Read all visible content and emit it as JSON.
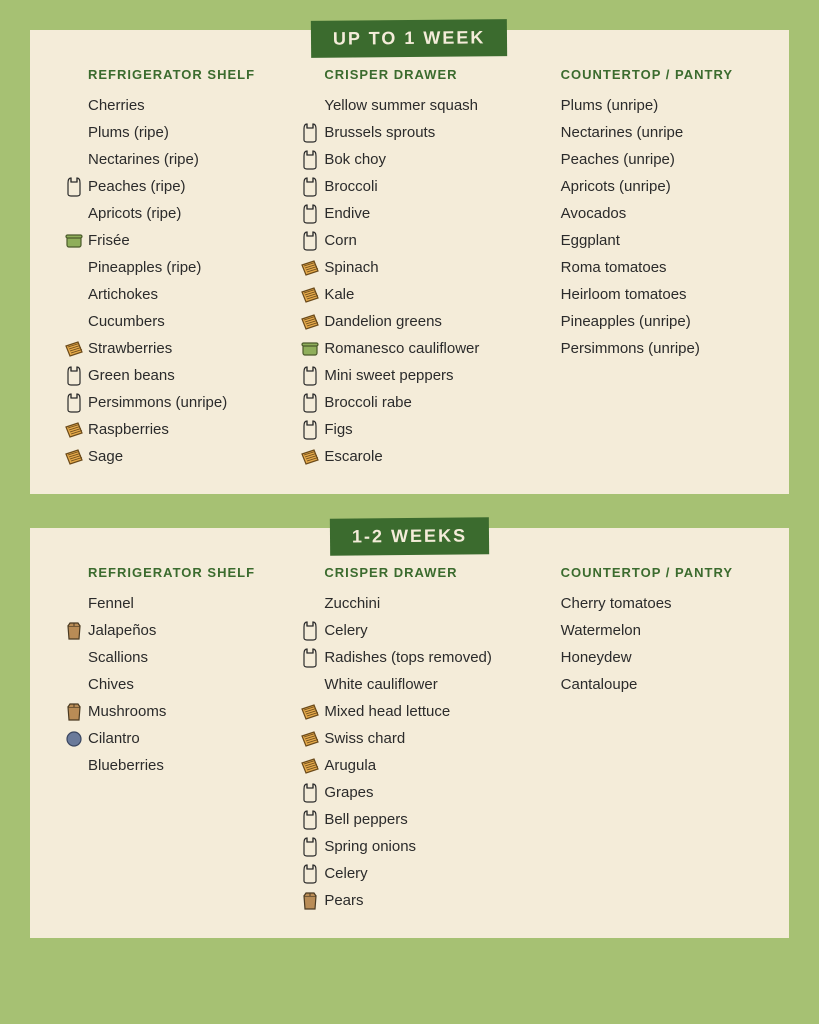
{
  "colors": {
    "page_bg": "#a6c173",
    "card_bg": "#f4ecd9",
    "header_bg": "#3b6b2e",
    "header_text": "#f4ecd9",
    "col_header": "#3b6b2e",
    "text": "#2b2b2b",
    "icon_bag_fill": "#f4ecd9",
    "icon_bag_stroke": "#2b2b2b",
    "icon_paper_fill": "#b98c56",
    "icon_paper_stroke": "#4a3a22",
    "icon_towel_fill": "#e4a94a",
    "icon_towel_stroke": "#6b4a1a",
    "icon_container_fill": "#8fae5a",
    "icon_container_stroke": "#4a5a2a",
    "icon_blue_fill": "#6a7a9a",
    "icon_blue_stroke": "#3a4660"
  },
  "sections": [
    {
      "title": "UP TO 1 WEEK",
      "columns": [
        {
          "header": "REFRIGERATOR SHELF",
          "items": [
            {
              "label": "Cherries",
              "icon": null
            },
            {
              "label": "Plums (ripe)",
              "icon": null
            },
            {
              "label": "Nectarines (ripe)",
              "icon": null
            },
            {
              "label": "Peaches (ripe)",
              "icon": "bag"
            },
            {
              "label": "Apricots (ripe)",
              "icon": null
            },
            {
              "label": "Frisée",
              "icon": "container"
            },
            {
              "label": "Pineapples (ripe)",
              "icon": null
            },
            {
              "label": "Artichokes",
              "icon": null
            },
            {
              "label": "Cucumbers",
              "icon": null
            },
            {
              "label": "Strawberries",
              "icon": "towel"
            },
            {
              "label": "Green beans",
              "icon": "bag"
            },
            {
              "label": "Persimmons (unripe)",
              "icon": "bag"
            },
            {
              "label": "Raspberries",
              "icon": "towel"
            },
            {
              "label": "Sage",
              "icon": "towel"
            }
          ]
        },
        {
          "header": "CRISPER DRAWER",
          "items": [
            {
              "label": "Yellow summer squash",
              "icon": null
            },
            {
              "label": "Brussels sprouts",
              "icon": "bag"
            },
            {
              "label": "Bok choy",
              "icon": "bag"
            },
            {
              "label": "Broccoli",
              "icon": "bag"
            },
            {
              "label": "Endive",
              "icon": "bag"
            },
            {
              "label": "Corn",
              "icon": "bag"
            },
            {
              "label": "Spinach",
              "icon": "towel"
            },
            {
              "label": "Kale",
              "icon": "towel"
            },
            {
              "label": "Dandelion greens",
              "icon": "towel"
            },
            {
              "label": "Romanesco cauliflower",
              "icon": "container"
            },
            {
              "label": "Mini sweet peppers",
              "icon": "bag"
            },
            {
              "label": "Broccoli rabe",
              "icon": "bag"
            },
            {
              "label": "Figs",
              "icon": "bag"
            },
            {
              "label": "Escarole",
              "icon": "towel"
            }
          ]
        },
        {
          "header": "COUNTERTOP / PANTRY",
          "items": [
            {
              "label": "Plums (unripe)",
              "icon": null
            },
            {
              "label": "Nectarines (unripe",
              "icon": null
            },
            {
              "label": "Peaches (unripe)",
              "icon": null
            },
            {
              "label": "Apricots (unripe)",
              "icon": null
            },
            {
              "label": "Avocados",
              "icon": null
            },
            {
              "label": "Eggplant",
              "icon": null
            },
            {
              "label": "Roma tomatoes",
              "icon": null
            },
            {
              "label": "Heirloom tomatoes",
              "icon": null
            },
            {
              "label": "Pineapples (unripe)",
              "icon": null
            },
            {
              "label": "Persimmons (unripe)",
              "icon": null
            }
          ]
        }
      ]
    },
    {
      "title": "1-2 WEEKS",
      "columns": [
        {
          "header": "REFRIGERATOR SHELF",
          "items": [
            {
              "label": "Fennel",
              "icon": null
            },
            {
              "label": "Jalapeños",
              "icon": "paper"
            },
            {
              "label": "Scallions",
              "icon": null
            },
            {
              "label": "Chives",
              "icon": null
            },
            {
              "label": "Mushrooms",
              "icon": "paper"
            },
            {
              "label": "Cilantro",
              "icon": "blue"
            },
            {
              "label": "Blueberries",
              "icon": null
            }
          ]
        },
        {
          "header": "CRISPER DRAWER",
          "items": [
            {
              "label": "Zucchini",
              "icon": null
            },
            {
              "label": "Celery",
              "icon": "bag"
            },
            {
              "label": "Radishes (tops removed)",
              "icon": "bag"
            },
            {
              "label": "White cauliflower",
              "icon": null
            },
            {
              "label": "Mixed head lettuce",
              "icon": "towel"
            },
            {
              "label": "Swiss chard",
              "icon": "towel"
            },
            {
              "label": "Arugula",
              "icon": "towel"
            },
            {
              "label": "Grapes",
              "icon": "bag"
            },
            {
              "label": "Bell peppers",
              "icon": "bag"
            },
            {
              "label": "Spring onions",
              "icon": "bag"
            },
            {
              "label": "Celery",
              "icon": "bag"
            },
            {
              "label": "Pears",
              "icon": "paper"
            }
          ]
        },
        {
          "header": "COUNTERTOP / PANTRY",
          "items": [
            {
              "label": "Cherry tomatoes",
              "icon": null
            },
            {
              "label": "Watermelon",
              "icon": null
            },
            {
              "label": "Honeydew",
              "icon": null
            },
            {
              "label": "Cantaloupe",
              "icon": null
            }
          ]
        }
      ]
    }
  ]
}
